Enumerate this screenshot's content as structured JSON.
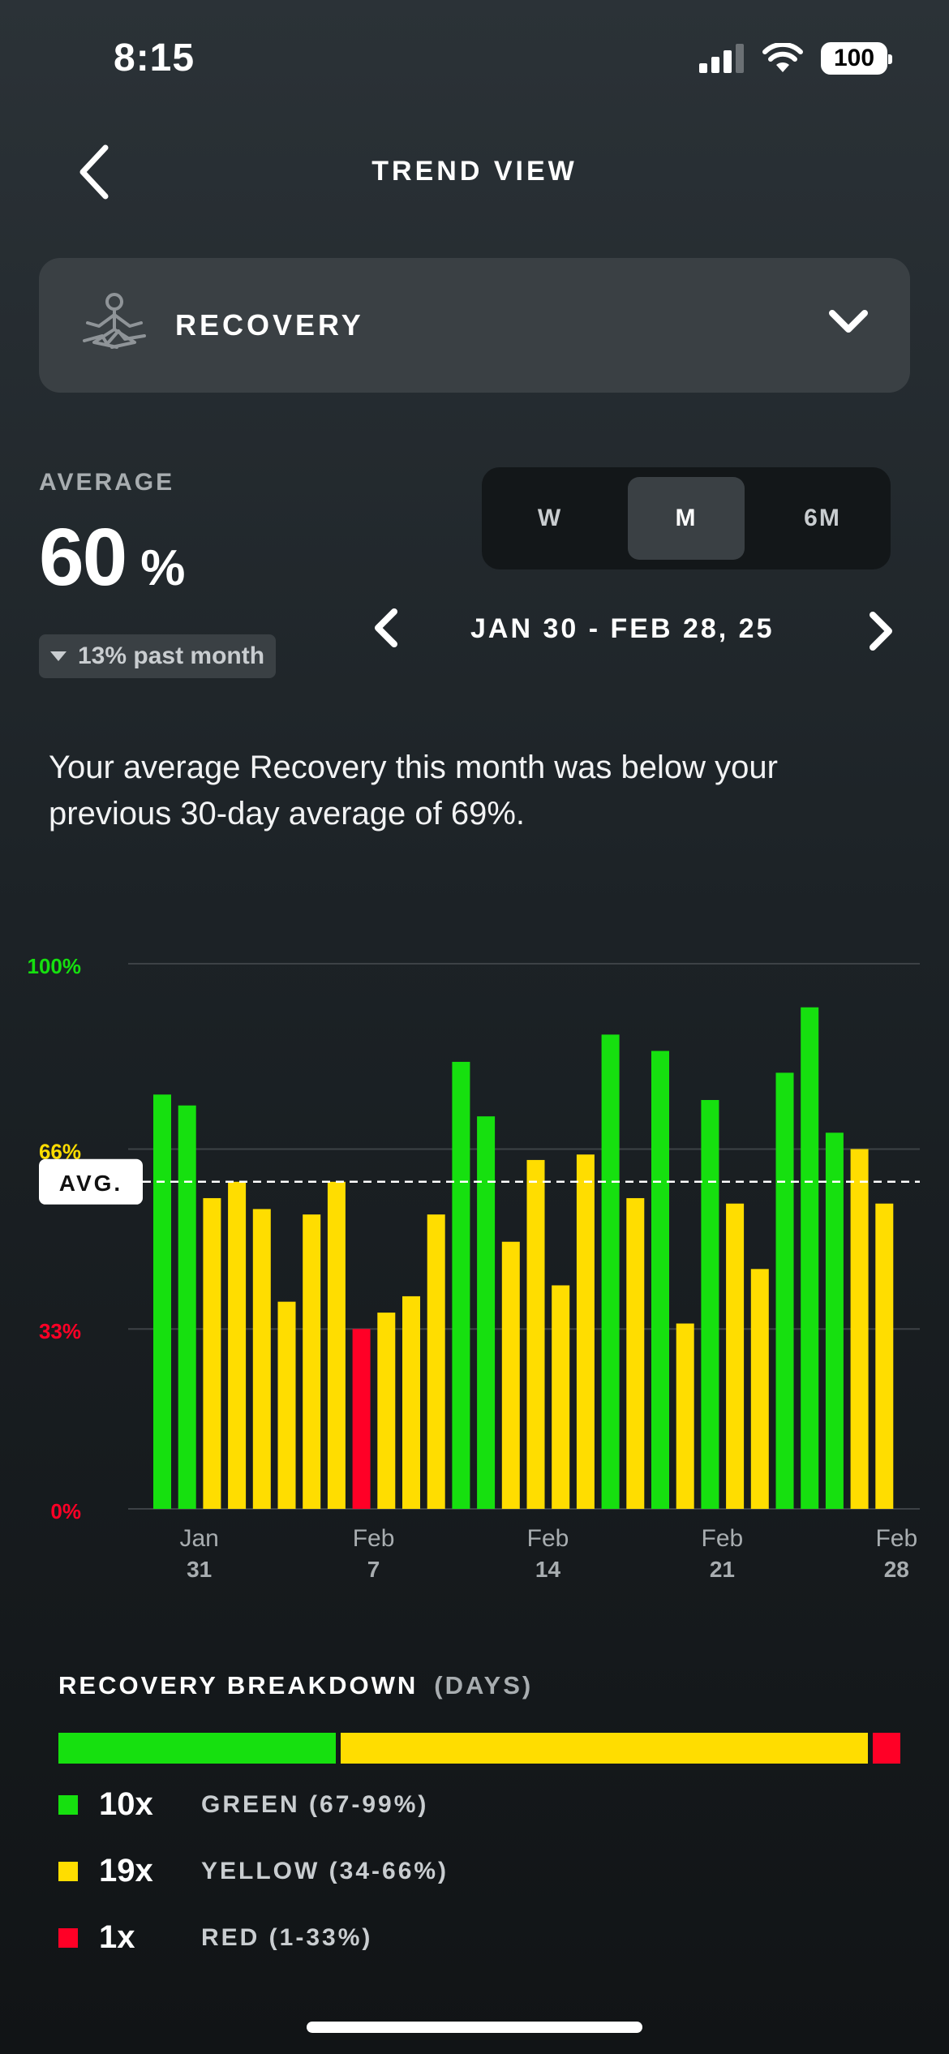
{
  "status_bar": {
    "time": "8:15",
    "battery": "100"
  },
  "header": {
    "title": "TREND VIEW"
  },
  "metric_selector": {
    "label": "RECOVERY",
    "icon": "recovery-figure-icon"
  },
  "average": {
    "label": "AVERAGE",
    "value": "60",
    "unit": "%",
    "change": "13% past month"
  },
  "period_tabs": [
    {
      "label": "W",
      "active": false
    },
    {
      "label": "M",
      "active": true
    },
    {
      "label": "6M",
      "active": false
    }
  ],
  "date_range": "JAN 30 - FEB 28, 25",
  "summary": "Your average Recovery this month was below your previous 30-day average of 69%.",
  "colors": {
    "green": "#16e00f",
    "yellow": "#ffdd00",
    "red": "#ff0026"
  },
  "chart_data": {
    "type": "bar",
    "y_ticks": [
      {
        "label": "100%",
        "value": 100,
        "color": "#16e00f"
      },
      {
        "label": "66%",
        "value": 66,
        "color": "#ffdd00"
      },
      {
        "label": "33%",
        "value": 33,
        "color": "#ff0026"
      },
      {
        "label": "0%",
        "value": 0,
        "color": "#ff0026"
      }
    ],
    "ylim": [
      0,
      100
    ],
    "average": {
      "label": "AVG.",
      "value": 60
    },
    "x_ticks": [
      {
        "month": "Jan",
        "day": "31",
        "index": 1
      },
      {
        "month": "Feb",
        "day": "7",
        "index": 8
      },
      {
        "month": "Feb",
        "day": "14",
        "index": 15
      },
      {
        "month": "Feb",
        "day": "21",
        "index": 22
      },
      {
        "month": "Feb",
        "day": "28",
        "index": 29
      }
    ],
    "values": [
      76,
      74,
      57,
      60,
      55,
      38,
      54,
      60,
      33,
      36,
      39,
      54,
      82,
      72,
      49,
      64,
      41,
      65,
      87,
      57,
      84,
      34,
      75,
      56,
      44,
      80,
      92,
      69,
      66,
      56
    ],
    "categories": [
      "green",
      "green",
      "yellow",
      "yellow",
      "yellow",
      "yellow",
      "yellow",
      "yellow",
      "red",
      "yellow",
      "yellow",
      "yellow",
      "green",
      "green",
      "yellow",
      "yellow",
      "yellow",
      "yellow",
      "green",
      "yellow",
      "green",
      "yellow",
      "green",
      "yellow",
      "yellow",
      "green",
      "green",
      "green",
      "yellow",
      "yellow"
    ]
  },
  "breakdown": {
    "title": "RECOVERY BREAKDOWN",
    "subtitle": "(DAYS)",
    "rows": [
      {
        "count": "10x",
        "label": "GREEN (67-99%)",
        "days": 10,
        "color": "#16e00f"
      },
      {
        "count": "19x",
        "label": "YELLOW (34-66%)",
        "days": 19,
        "color": "#ffdd00"
      },
      {
        "count": "1x",
        "label": "RED (1-33%)",
        "days": 1,
        "color": "#ff0026"
      }
    ]
  }
}
